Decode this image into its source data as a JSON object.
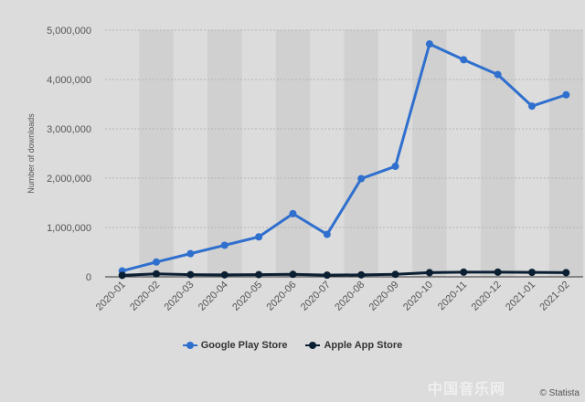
{
  "chart_data": {
    "type": "line",
    "categories": [
      "2020-01",
      "2020-02",
      "2020-03",
      "2020-04",
      "2020-05",
      "2020-06",
      "2020-07",
      "2020-08",
      "2020-09",
      "2020-10",
      "2020-11",
      "2020-12",
      "2021-01",
      "2021-02"
    ],
    "series": [
      {
        "name": "Google Play Store",
        "color": "#2f6fce",
        "values": [
          120000,
          300000,
          470000,
          640000,
          810000,
          1280000,
          860000,
          1990000,
          2240000,
          4720000,
          4400000,
          4100000,
          3460000,
          3690000
        ]
      },
      {
        "name": "Apple App Store",
        "color": "#0b1f33",
        "values": [
          30000,
          60000,
          45000,
          40000,
          45000,
          50000,
          35000,
          40000,
          50000,
          85000,
          95000,
          95000,
          90000,
          85000
        ]
      }
    ],
    "y_ticks": [
      "0",
      "1,000,000",
      "2,000,000",
      "3,000,000",
      "4,000,000",
      "5,000,000"
    ],
    "ylabel": "Number of downloads",
    "xlabel": "",
    "ylim": [
      0,
      5000000
    ],
    "grid": true,
    "legend_position": "bottom-center"
  },
  "legend": {
    "google_label": "Google Play Store",
    "apple_label": "Apple App Store"
  },
  "watermark": "中国音乐网",
  "credit": "© Statista"
}
